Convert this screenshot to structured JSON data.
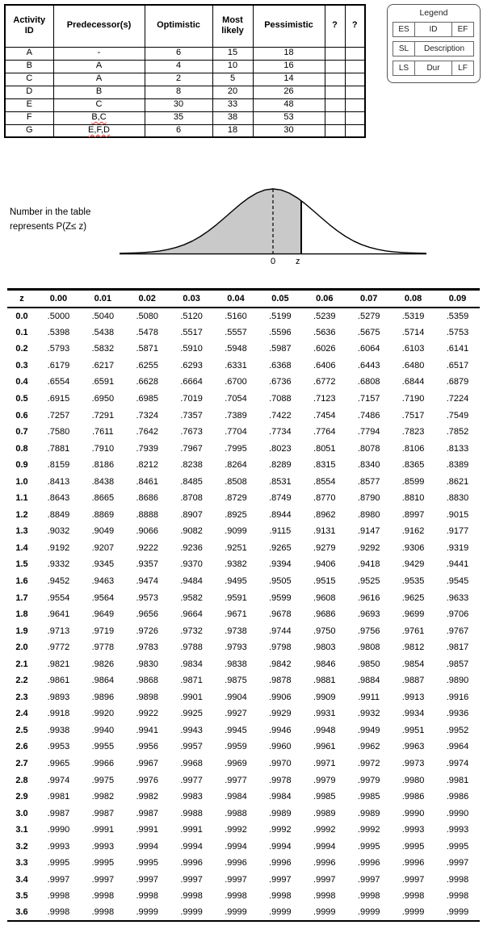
{
  "activity_table": {
    "headers": [
      "Activity ID",
      "Predecessor(s)",
      "Optimistic",
      "Most likely",
      "Pessimistic",
      "?",
      "?"
    ],
    "rows": [
      {
        "id": "A",
        "predecessors": "-",
        "optimistic": "6",
        "most_likely": "15",
        "pessimistic": "18",
        "col6": "",
        "col7": ""
      },
      {
        "id": "B",
        "predecessors": "A",
        "optimistic": "4",
        "most_likely": "10",
        "pessimistic": "16",
        "col6": "",
        "col7": ""
      },
      {
        "id": "C",
        "predecessors": "A",
        "optimistic": "2",
        "most_likely": "5",
        "pessimistic": "14",
        "col6": "",
        "col7": ""
      },
      {
        "id": "D",
        "predecessors": "B",
        "optimistic": "8",
        "most_likely": "20",
        "pessimistic": "26",
        "col6": "",
        "col7": ""
      },
      {
        "id": "E",
        "predecessors": "C",
        "optimistic": "30",
        "most_likely": "33",
        "pessimistic": "48",
        "col6": "",
        "col7": ""
      },
      {
        "id": "F",
        "predecessors": "B,C",
        "optimistic": "35",
        "most_likely": "38",
        "pessimistic": "53",
        "col6": "",
        "col7": "",
        "spellcheck": true
      },
      {
        "id": "G",
        "predecessors": "E,F,D",
        "optimistic": "6",
        "most_likely": "18",
        "pessimistic": "30",
        "col6": "",
        "col7": "",
        "spellcheck": true
      }
    ]
  },
  "legend": {
    "title": "Legend",
    "rows": [
      [
        "ES",
        "ID",
        "EF"
      ],
      [
        "SL",
        "Description"
      ],
      [
        "LS",
        "Dur",
        "LF"
      ]
    ]
  },
  "figure": {
    "caption": "Number in the table represents P(Z≤ z)",
    "zero_label": "0",
    "z_label": "z",
    "shade_color": "#c9c9c9"
  },
  "z_table": {
    "headers": [
      "z",
      "0.00",
      "0.01",
      "0.02",
      "0.03",
      "0.04",
      "0.05",
      "0.06",
      "0.07",
      "0.08",
      "0.09"
    ],
    "rows": [
      {
        "z": "0.0",
        "values": [
          ".5000",
          ".5040",
          ".5080",
          ".5120",
          ".5160",
          ".5199",
          ".5239",
          ".5279",
          ".5319",
          ".5359"
        ]
      },
      {
        "z": "0.1",
        "values": [
          ".5398",
          ".5438",
          ".5478",
          ".5517",
          ".5557",
          ".5596",
          ".5636",
          ".5675",
          ".5714",
          ".5753"
        ]
      },
      {
        "z": "0.2",
        "values": [
          ".5793",
          ".5832",
          ".5871",
          ".5910",
          ".5948",
          ".5987",
          ".6026",
          ".6064",
          ".6103",
          ".6141"
        ]
      },
      {
        "z": "0.3",
        "values": [
          ".6179",
          ".6217",
          ".6255",
          ".6293",
          ".6331",
          ".6368",
          ".6406",
          ".6443",
          ".6480",
          ".6517"
        ]
      },
      {
        "z": "0.4",
        "values": [
          ".6554",
          ".6591",
          ".6628",
          ".6664",
          ".6700",
          ".6736",
          ".6772",
          ".6808",
          ".6844",
          ".6879"
        ]
      },
      {
        "z": "0.5",
        "values": [
          ".6915",
          ".6950",
          ".6985",
          ".7019",
          ".7054",
          ".7088",
          ".7123",
          ".7157",
          ".7190",
          ".7224"
        ]
      },
      {
        "z": "0.6",
        "values": [
          ".7257",
          ".7291",
          ".7324",
          ".7357",
          ".7389",
          ".7422",
          ".7454",
          ".7486",
          ".7517",
          ".7549"
        ]
      },
      {
        "z": "0.7",
        "values": [
          ".7580",
          ".7611",
          ".7642",
          ".7673",
          ".7704",
          ".7734",
          ".7764",
          ".7794",
          ".7823",
          ".7852"
        ]
      },
      {
        "z": "0.8",
        "values": [
          ".7881",
          ".7910",
          ".7939",
          ".7967",
          ".7995",
          ".8023",
          ".8051",
          ".8078",
          ".8106",
          ".8133"
        ]
      },
      {
        "z": "0.9",
        "values": [
          ".8159",
          ".8186",
          ".8212",
          ".8238",
          ".8264",
          ".8289",
          ".8315",
          ".8340",
          ".8365",
          ".8389"
        ]
      },
      {
        "z": "1.0",
        "values": [
          ".8413",
          ".8438",
          ".8461",
          ".8485",
          ".8508",
          ".8531",
          ".8554",
          ".8577",
          ".8599",
          ".8621"
        ]
      },
      {
        "z": "1.1",
        "values": [
          ".8643",
          ".8665",
          ".8686",
          ".8708",
          ".8729",
          ".8749",
          ".8770",
          ".8790",
          ".8810",
          ".8830"
        ]
      },
      {
        "z": "1.2",
        "values": [
          ".8849",
          ".8869",
          ".8888",
          ".8907",
          ".8925",
          ".8944",
          ".8962",
          ".8980",
          ".8997",
          ".9015"
        ]
      },
      {
        "z": "1.3",
        "values": [
          ".9032",
          ".9049",
          ".9066",
          ".9082",
          ".9099",
          ".9115",
          ".9131",
          ".9147",
          ".9162",
          ".9177"
        ]
      },
      {
        "z": "1.4",
        "values": [
          ".9192",
          ".9207",
          ".9222",
          ".9236",
          ".9251",
          ".9265",
          ".9279",
          ".9292",
          ".9306",
          ".9319"
        ]
      },
      {
        "z": "1.5",
        "values": [
          ".9332",
          ".9345",
          ".9357",
          ".9370",
          ".9382",
          ".9394",
          ".9406",
          ".9418",
          ".9429",
          ".9441"
        ]
      },
      {
        "z": "1.6",
        "values": [
          ".9452",
          ".9463",
          ".9474",
          ".9484",
          ".9495",
          ".9505",
          ".9515",
          ".9525",
          ".9535",
          ".9545"
        ]
      },
      {
        "z": "1.7",
        "values": [
          ".9554",
          ".9564",
          ".9573",
          ".9582",
          ".9591",
          ".9599",
          ".9608",
          ".9616",
          ".9625",
          ".9633"
        ]
      },
      {
        "z": "1.8",
        "values": [
          ".9641",
          ".9649",
          ".9656",
          ".9664",
          ".9671",
          ".9678",
          ".9686",
          ".9693",
          ".9699",
          ".9706"
        ]
      },
      {
        "z": "1.9",
        "values": [
          ".9713",
          ".9719",
          ".9726",
          ".9732",
          ".9738",
          ".9744",
          ".9750",
          ".9756",
          ".9761",
          ".9767"
        ]
      },
      {
        "z": "2.0",
        "values": [
          ".9772",
          ".9778",
          ".9783",
          ".9788",
          ".9793",
          ".9798",
          ".9803",
          ".9808",
          ".9812",
          ".9817"
        ]
      },
      {
        "z": "2.1",
        "values": [
          ".9821",
          ".9826",
          ".9830",
          ".9834",
          ".9838",
          ".9842",
          ".9846",
          ".9850",
          ".9854",
          ".9857"
        ]
      },
      {
        "z": "2.2",
        "values": [
          ".9861",
          ".9864",
          ".9868",
          ".9871",
          ".9875",
          ".9878",
          ".9881",
          ".9884",
          ".9887",
          ".9890"
        ]
      },
      {
        "z": "2.3",
        "values": [
          ".9893",
          ".9896",
          ".9898",
          ".9901",
          ".9904",
          ".9906",
          ".9909",
          ".9911",
          ".9913",
          ".9916"
        ]
      },
      {
        "z": "2.4",
        "values": [
          ".9918",
          ".9920",
          ".9922",
          ".9925",
          ".9927",
          ".9929",
          ".9931",
          ".9932",
          ".9934",
          ".9936"
        ]
      },
      {
        "z": "2.5",
        "values": [
          ".9938",
          ".9940",
          ".9941",
          ".9943",
          ".9945",
          ".9946",
          ".9948",
          ".9949",
          ".9951",
          ".9952"
        ]
      },
      {
        "z": "2.6",
        "values": [
          ".9953",
          ".9955",
          ".9956",
          ".9957",
          ".9959",
          ".9960",
          ".9961",
          ".9962",
          ".9963",
          ".9964"
        ]
      },
      {
        "z": "2.7",
        "values": [
          ".9965",
          ".9966",
          ".9967",
          ".9968",
          ".9969",
          ".9970",
          ".9971",
          ".9972",
          ".9973",
          ".9974"
        ]
      },
      {
        "z": "2.8",
        "values": [
          ".9974",
          ".9975",
          ".9976",
          ".9977",
          ".9977",
          ".9978",
          ".9979",
          ".9979",
          ".9980",
          ".9981"
        ]
      },
      {
        "z": "2.9",
        "values": [
          ".9981",
          ".9982",
          ".9982",
          ".9983",
          ".9984",
          ".9984",
          ".9985",
          ".9985",
          ".9986",
          ".9986"
        ]
      },
      {
        "z": "3.0",
        "values": [
          ".9987",
          ".9987",
          ".9987",
          ".9988",
          ".9988",
          ".9989",
          ".9989",
          ".9989",
          ".9990",
          ".9990"
        ]
      },
      {
        "z": "3.1",
        "values": [
          ".9990",
          ".9991",
          ".9991",
          ".9991",
          ".9992",
          ".9992",
          ".9992",
          ".9992",
          ".9993",
          ".9993"
        ]
      },
      {
        "z": "3.2",
        "values": [
          ".9993",
          ".9993",
          ".9994",
          ".9994",
          ".9994",
          ".9994",
          ".9994",
          ".9995",
          ".9995",
          ".9995"
        ]
      },
      {
        "z": "3.3",
        "values": [
          ".9995",
          ".9995",
          ".9995",
          ".9996",
          ".9996",
          ".9996",
          ".9996",
          ".9996",
          ".9996",
          ".9997"
        ]
      },
      {
        "z": "3.4",
        "values": [
          ".9997",
          ".9997",
          ".9997",
          ".9997",
          ".9997",
          ".9997",
          ".9997",
          ".9997",
          ".9997",
          ".9998"
        ]
      },
      {
        "z": "3.5",
        "values": [
          ".9998",
          ".9998",
          ".9998",
          ".9998",
          ".9998",
          ".9998",
          ".9998",
          ".9998",
          ".9998",
          ".9998"
        ]
      },
      {
        "z": "3.6",
        "values": [
          ".9998",
          ".9998",
          ".9999",
          ".9999",
          ".9999",
          ".9999",
          ".9999",
          ".9999",
          ".9999",
          ".9999"
        ]
      }
    ]
  }
}
